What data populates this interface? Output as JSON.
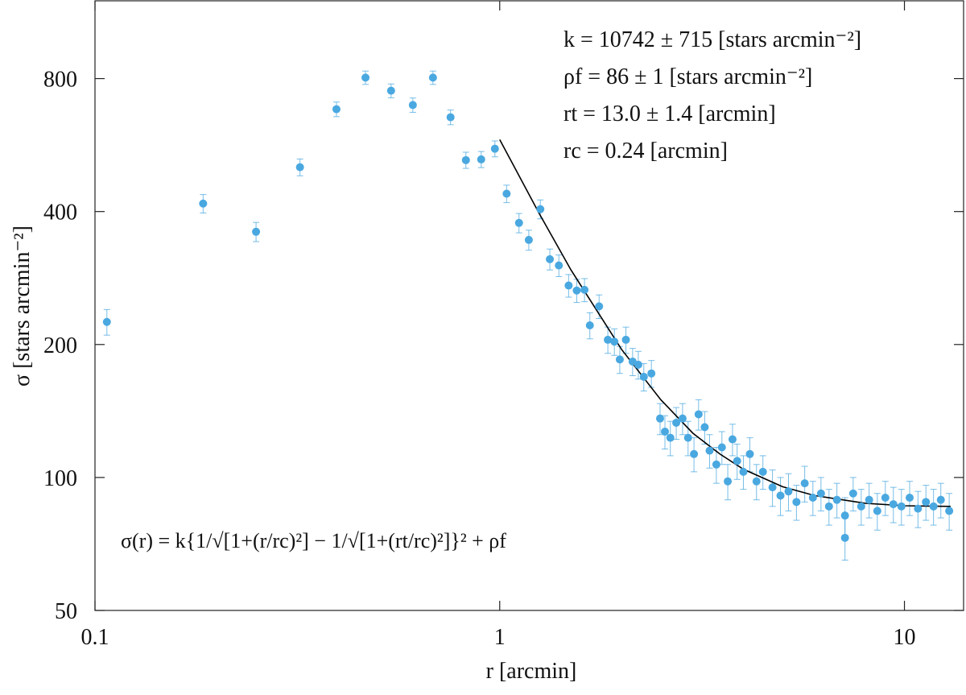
{
  "chart_data": {
    "type": "scatter",
    "xlabel": "r [arcmin]",
    "ylabel": "σ [stars arcmin⁻²]",
    "log_x": true,
    "log_y": true,
    "xlim": [
      0.1,
      14
    ],
    "ylim": [
      50,
      1200
    ],
    "xticks": [
      0.1,
      1,
      10
    ],
    "yticks": [
      50,
      100,
      200,
      400,
      800
    ],
    "annotations": [
      "k = 10742 ± 715 [stars arcmin⁻²]",
      "ρf = 86 ± 1 [stars arcmin⁻²]",
      "rt = 13.0 ± 1.4 [arcmin]",
      "rc = 0.24 [arcmin]",
      "σ(r) = k{1/√[1+(r/rc)²] − 1/√[1+(rt/rc)²]}² + ρf"
    ],
    "points": {
      "color": "#4aa8e0",
      "x": [
        0.107,
        0.185,
        0.25,
        0.321,
        0.395,
        0.466,
        0.539,
        0.61,
        0.684,
        0.756,
        0.825,
        0.9,
        0.973,
        1.04,
        1.116,
        1.18,
        1.26,
        1.33,
        1.4,
        1.48,
        1.55,
        1.62,
        1.67,
        1.76,
        1.85,
        1.92,
        1.98,
        2.05,
        2.13,
        2.2,
        2.27,
        2.37,
        2.49,
        2.56,
        2.64,
        2.73,
        2.83,
        2.92,
        3.02,
        3.1,
        3.21,
        3.3,
        3.43,
        3.54,
        3.66,
        3.76,
        3.86,
        4.0,
        4.15,
        4.31,
        4.47,
        4.72,
        4.94,
        5.17,
        5.41,
        5.67,
        5.94,
        6.22,
        6.51,
        6.81,
        7.13,
        7.13,
        7.47,
        7.82,
        8.18,
        8.57,
        8.97,
        9.39,
        9.83,
        10.3,
        10.8,
        11.3,
        11.8,
        12.3,
        12.9
      ],
      "values": [
        225,
        417,
        360,
        504,
        682,
        804,
        751,
        697,
        804,
        654,
        523,
        525,
        555,
        439,
        377,
        345,
        405,
        312,
        302,
        272,
        265,
        266,
        221,
        244,
        205,
        203,
        185,
        205,
        183,
        180,
        169,
        172,
        136,
        127,
        123,
        133,
        136,
        123,
        113,
        139,
        130,
        115,
        107,
        117,
        98,
        122,
        109,
        103,
        113,
        98,
        103,
        95,
        91,
        93,
        88,
        97,
        90,
        92,
        86,
        89,
        82,
        73,
        92,
        86,
        89,
        84,
        90,
        87,
        86,
        90,
        85,
        88,
        86,
        89,
        84
      ],
      "errors": [
        15,
        20,
        18,
        22,
        26,
        28,
        27,
        26,
        28,
        25,
        22,
        22,
        23,
        20,
        19,
        18,
        20,
        17,
        17,
        16,
        16,
        16,
        15,
        15,
        14,
        14,
        13,
        14,
        13,
        13,
        12,
        12,
        11,
        11,
        11,
        11,
        11,
        11,
        10,
        11,
        11,
        10,
        10,
        10,
        9,
        10,
        10,
        9,
        10,
        9,
        9,
        9,
        9,
        9,
        8,
        9,
        8,
        8,
        8,
        8,
        8,
        8,
        8,
        8,
        8,
        8,
        8,
        8,
        8,
        8,
        8,
        8,
        8,
        8,
        8
      ]
    },
    "fit": {
      "color": "#000000",
      "x": [
        1,
        1.25,
        1.5,
        2,
        2.5,
        3,
        3.5,
        4,
        5,
        6,
        8,
        10,
        13
      ],
      "values": [
        582,
        397,
        295,
        195,
        150,
        126,
        113,
        104.4,
        95.3,
        91,
        87.4,
        86.3,
        86
      ]
    }
  }
}
